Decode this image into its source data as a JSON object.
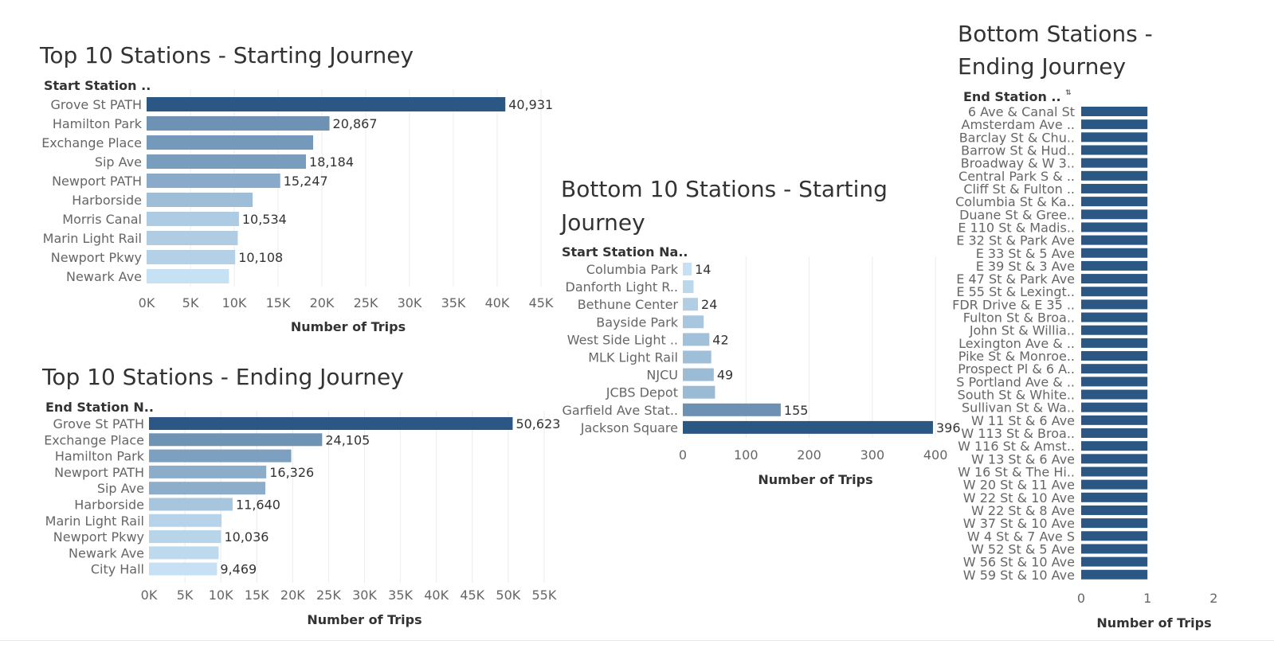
{
  "chart_data": [
    {
      "id": "top-start",
      "type": "bar",
      "orientation": "horizontal",
      "title": "Top 10 Stations - Starting Journey",
      "category_header": "Start Station ..",
      "xlabel": "Number of Trips",
      "categories": [
        "Grove St PATH",
        "Hamilton Park",
        "Exchange Place",
        "Sip Ave",
        "Newport PATH",
        "Harborside",
        "Morris Canal",
        "Marin Light Rail",
        "Newport Pkwy",
        "Newark Ave"
      ],
      "values": [
        40931,
        20867,
        19000,
        18184,
        15247,
        12100,
        10534,
        10400,
        10108,
        9400
      ],
      "data_labels": [
        "40,931",
        "20,867",
        "",
        "18,184",
        "15,247",
        "",
        "10,534",
        "",
        "10,108",
        ""
      ],
      "xlim": [
        0,
        46000
      ],
      "ticks": [
        0,
        5000,
        10000,
        15000,
        20000,
        25000,
        30000,
        35000,
        40000,
        45000
      ],
      "tick_labels": [
        "0K",
        "5K",
        "10K",
        "15K",
        "20K",
        "25K",
        "30K",
        "35K",
        "40K",
        "45K"
      ],
      "color_scale": [
        "#c6e1f4",
        "#2b5784"
      ],
      "grid": true
    },
    {
      "id": "top-end",
      "type": "bar",
      "orientation": "horizontal",
      "title": "Top 10 Stations - Ending Journey",
      "category_header": "End Station N..",
      "xlabel": "Number of Trips",
      "categories": [
        "Grove St PATH",
        "Exchange Place",
        "Hamilton Park",
        "Newport PATH",
        "Sip Ave",
        "Harborside",
        "Marin Light Rail",
        "Newport Pkwy",
        "Newark Ave",
        "City Hall"
      ],
      "values": [
        50623,
        24105,
        19800,
        16326,
        16200,
        11640,
        10100,
        10036,
        9700,
        9469
      ],
      "data_labels": [
        "50,623",
        "24,105",
        "",
        "16,326",
        "",
        "11,640",
        "",
        "10,036",
        "",
        "9,469"
      ],
      "xlim": [
        0,
        60000
      ],
      "ticks": [
        0,
        5000,
        10000,
        15000,
        20000,
        25000,
        30000,
        35000,
        40000,
        45000,
        50000,
        55000
      ],
      "tick_labels": [
        "0K",
        "5K",
        "10K",
        "15K",
        "20K",
        "25K",
        "30K",
        "35K",
        "40K",
        "45K",
        "50K",
        "55K"
      ],
      "color_scale": [
        "#c6e1f4",
        "#2b5784"
      ],
      "grid": true
    },
    {
      "id": "bottom-start",
      "type": "bar",
      "orientation": "horizontal",
      "title": "Bottom 10 Stations - Starting Journey",
      "title_lines": [
        "Bottom 10 Stations - Starting",
        "Journey"
      ],
      "category_header": "Start Station Na..",
      "xlabel": "Number of Trips",
      "categories": [
        "Columbia Park",
        "Danforth Light R..",
        "Bethune Center",
        "Bayside Park",
        "West Side Light ..",
        "MLK Light Rail",
        "NJCU",
        "JCBS Depot",
        "Garfield Ave Stat..",
        "Jackson Square"
      ],
      "values": [
        14,
        17,
        24,
        33,
        42,
        45,
        49,
        51,
        155,
        396
      ],
      "data_labels": [
        "14",
        "",
        "24",
        "",
        "42",
        "",
        "49",
        "",
        "155",
        "396"
      ],
      "xlim": [
        0,
        420
      ],
      "ticks": [
        0,
        100,
        200,
        300,
        400
      ],
      "tick_labels": [
        "0",
        "100",
        "200",
        "300",
        "400"
      ],
      "color_scale": [
        "#c6e1f4",
        "#2b5784"
      ],
      "grid": true
    },
    {
      "id": "bottom-end",
      "type": "bar",
      "orientation": "horizontal",
      "title": "Bottom Stations - Ending Journey",
      "title_lines": [
        "Bottom Stations -",
        "Ending Journey"
      ],
      "category_header": "End Station ..",
      "sort_icon": "sort-icon",
      "xlabel": "Number of Trips",
      "categories": [
        "6 Ave & Canal St",
        "Amsterdam Ave ..",
        "Barclay St & Chu..",
        "Barrow St & Hud..",
        "Broadway & W 3..",
        "Central Park S & ..",
        "Cliff St & Fulton ..",
        "Columbia St & Ka..",
        "Duane St & Gree..",
        "E 110 St & Madis..",
        "E 32 St & Park Ave",
        "E 33 St & 5 Ave",
        "E 39 St & 3 Ave",
        "E 47 St & Park Ave",
        "E 55 St & Lexingt..",
        "FDR Drive & E 35 ..",
        "Fulton St & Broa..",
        "John St & Willia..",
        "Lexington Ave & ..",
        "Pike St & Monroe..",
        "Prospect Pl & 6 A..",
        "S Portland Ave & ..",
        "South St & White..",
        "Sullivan St & Wa..",
        "W 11 St & 6 Ave",
        "W 113 St & Broa..",
        "W 116 St & Amst..",
        "W 13 St & 6 Ave",
        "W 16 St & The Hi..",
        "W 20 St & 11 Ave",
        "W 22 St & 10 Ave",
        "W 22 St & 8 Ave",
        "W 37 St & 10 Ave",
        "W 4 St & 7 Ave S",
        "W 52 St & 5 Ave",
        "W 56 St & 10 Ave",
        "W 59 St & 10 Ave"
      ],
      "values": [
        1,
        1,
        1,
        1,
        1,
        1,
        1,
        1,
        1,
        1,
        1,
        1,
        1,
        1,
        1,
        1,
        1,
        1,
        1,
        1,
        1,
        1,
        1,
        1,
        1,
        1,
        1,
        1,
        1,
        1,
        1,
        1,
        1,
        1,
        1,
        1,
        1
      ],
      "xlim": [
        0,
        2.2
      ],
      "ticks": [
        0,
        1,
        2
      ],
      "tick_labels": [
        "0",
        "1",
        "2"
      ],
      "bar_color": "#2b5784",
      "grid": false
    }
  ]
}
